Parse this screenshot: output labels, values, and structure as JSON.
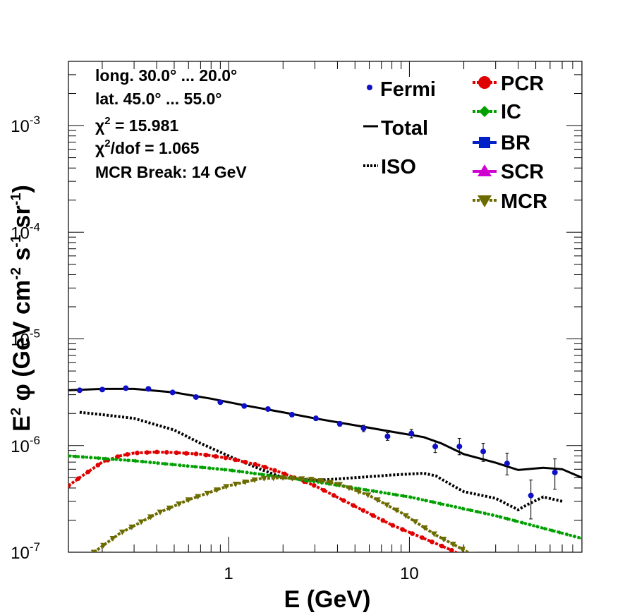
{
  "chart_data": {
    "type": "line",
    "xlabel": "E (GeV)",
    "ylabel": "E² φ (GeV cm⁻² s⁻¹ sr⁻¹)",
    "ylabel_parts": {
      "base": "E",
      "sup1": "2",
      "mid": " φ (GeV cm",
      "sup2": "-2",
      "mid2": " s",
      "sup3": "-1",
      "mid3": " sr",
      "sup4": "-1",
      "end": ")"
    },
    "xscale": "log",
    "yscale": "log",
    "xlim": [
      0.13,
      90
    ],
    "ylim": [
      1e-07,
      0.004
    ],
    "x_tick_labels": [
      {
        "v": 1,
        "label": "1"
      },
      {
        "v": 10,
        "label": "10"
      }
    ],
    "y_tick_labels": [
      {
        "v": 1e-07,
        "base": "10",
        "exp": "-7"
      },
      {
        "v": 1e-06,
        "base": "10",
        "exp": "-6"
      },
      {
        "v": 1e-05,
        "base": "10",
        "exp": "-5"
      },
      {
        "v": 0.0001,
        "base": "10",
        "exp": "-4"
      },
      {
        "v": 0.001,
        "base": "10",
        "exp": "-3"
      }
    ],
    "info": {
      "line1": "long. 30.0° ... 20.0°",
      "line2": "lat. 45.0° ... 55.0°",
      "chi_sym": "χ",
      "chi_sup": "2",
      "chi2_text": " = 15.981",
      "chi2dof_text": "/dof = 1.065",
      "mcr_break": "MCR Break: 14 GeV"
    },
    "legend": {
      "left": [
        {
          "name": "Fermi",
          "color": "#1010c8",
          "style": "dot"
        },
        {
          "name": "Total",
          "color": "#000000",
          "style": "line"
        },
        {
          "name": "ISO",
          "color": "#000000",
          "style": "dotted"
        }
      ],
      "right": [
        {
          "name": "PCR",
          "color": "#e00000",
          "style": "circle"
        },
        {
          "name": "IC",
          "color": "#00a000",
          "style": "diamond"
        },
        {
          "name": "BR",
          "color": "#0020c8",
          "style": "square"
        },
        {
          "name": "SCR",
          "color": "#d000d0",
          "style": "triangle-up"
        },
        {
          "name": "MCR",
          "color": "#6b6b00",
          "style": "triangle-down"
        }
      ]
    },
    "fermi": {
      "color": "#1010c8",
      "points": [
        {
          "x": 0.15,
          "y": 3.3e-06,
          "lo": 3.2e-06,
          "hi": 3.4e-06
        },
        {
          "x": 0.2,
          "y": 3.35e-06,
          "lo": 3.25e-06,
          "hi": 3.45e-06
        },
        {
          "x": 0.27,
          "y": 3.45e-06,
          "lo": 3.35e-06,
          "hi": 3.55e-06
        },
        {
          "x": 0.36,
          "y": 3.4e-06,
          "lo": 3.3e-06,
          "hi": 3.5e-06
        },
        {
          "x": 0.49,
          "y": 3.15e-06,
          "lo": 3.05e-06,
          "hi": 3.25e-06
        },
        {
          "x": 0.66,
          "y": 2.85e-06,
          "lo": 2.75e-06,
          "hi": 2.95e-06
        },
        {
          "x": 0.9,
          "y": 2.55e-06,
          "lo": 2.47e-06,
          "hi": 2.63e-06
        },
        {
          "x": 1.22,
          "y": 2.35e-06,
          "lo": 2.27e-06,
          "hi": 2.43e-06
        },
        {
          "x": 1.65,
          "y": 2.2e-06,
          "lo": 2.12e-06,
          "hi": 2.28e-06
        },
        {
          "x": 2.24,
          "y": 1.95e-06,
          "lo": 1.87e-06,
          "hi": 2.03e-06
        },
        {
          "x": 3.04,
          "y": 1.8e-06,
          "lo": 1.72e-06,
          "hi": 1.88e-06
        },
        {
          "x": 4.12,
          "y": 1.6e-06,
          "lo": 1.52e-06,
          "hi": 1.68e-06
        },
        {
          "x": 5.58,
          "y": 1.45e-06,
          "lo": 1.35e-06,
          "hi": 1.55e-06
        },
        {
          "x": 7.57,
          "y": 1.22e-06,
          "lo": 1.12e-06,
          "hi": 1.32e-06
        },
        {
          "x": 10.26,
          "y": 1.3e-06,
          "lo": 1.18e-06,
          "hi": 1.42e-06
        },
        {
          "x": 13.9,
          "y": 9.8e-07,
          "lo": 8.6e-07,
          "hi": 1.1e-06
        },
        {
          "x": 18.9,
          "y": 9.8e-07,
          "lo": 8.2e-07,
          "hi": 1.17e-06
        },
        {
          "x": 25.6,
          "y": 8.8e-07,
          "lo": 7.1e-07,
          "hi": 1.05e-06
        },
        {
          "x": 34.7,
          "y": 6.8e-07,
          "lo": 5.3e-07,
          "hi": 8.5e-07
        },
        {
          "x": 47.0,
          "y": 3.4e-07,
          "lo": 2.05e-07,
          "hi": 4.75e-07
        },
        {
          "x": 63.8,
          "y": 5.6e-07,
          "lo": 3.9e-07,
          "hi": 7.5e-07
        }
      ]
    },
    "series": [
      {
        "name": "Total",
        "color": "#000000",
        "style": "solid",
        "x": [
          0.13,
          0.2,
          0.3,
          0.5,
          0.8,
          1.2,
          2,
          3,
          5,
          8,
          12,
          15,
          20,
          30,
          40,
          55,
          70,
          90
        ],
        "y": [
          3.3e-06,
          3.4e-06,
          3.4e-06,
          3.15e-06,
          2.75e-06,
          2.4e-06,
          2.05e-06,
          1.8e-06,
          1.55e-06,
          1.35e-06,
          1.2e-06,
          1.05e-06,
          8.3e-07,
          6.9e-07,
          5.9e-07,
          6.2e-07,
          6e-07,
          5e-07
        ]
      },
      {
        "name": "ISO",
        "color": "#000000",
        "style": "dotted",
        "x": [
          0.15,
          0.2,
          0.3,
          0.5,
          0.7,
          1.0,
          1.5,
          2.0,
          3.0,
          5.0,
          8.0,
          12,
          14,
          17,
          20,
          30,
          35,
          40,
          45,
          55,
          70
        ],
        "y": [
          2.05e-06,
          1.95e-06,
          1.8e-06,
          1.4e-06,
          1.05e-06,
          8e-07,
          6e-07,
          5e-07,
          4.7e-07,
          5e-07,
          5.3e-07,
          5.5e-07,
          5.2e-07,
          4.3e-07,
          3.7e-07,
          3.2e-07,
          2.8e-07,
          2.5e-07,
          2.8e-07,
          3.3e-07,
          3e-07
        ]
      },
      {
        "name": "PCR",
        "color": "#e00000",
        "style": "circle",
        "x": [
          0.13,
          0.15,
          0.2,
          0.25,
          0.3,
          0.4,
          0.5,
          0.7,
          1.0,
          1.5,
          2.0,
          3.0,
          5.0,
          8.0,
          12,
          17,
          22
        ],
        "y": [
          4.2e-07,
          5e-07,
          7e-07,
          8e-07,
          8.5e-07,
          8.7e-07,
          8.6e-07,
          8.3e-07,
          7.6e-07,
          6.5e-07,
          5.5e-07,
          4.2e-07,
          2.7e-07,
          1.8e-07,
          1.35e-07,
          1.05e-07,
          8.5e-08
        ]
      },
      {
        "name": "IC",
        "color": "#00a000",
        "style": "diamond",
        "x": [
          0.13,
          0.3,
          1.0,
          3.0,
          10,
          30,
          90
        ],
        "y": [
          8e-07,
          7.2e-07,
          5.9e-07,
          4.6e-07,
          3.3e-07,
          2.2e-07,
          1.35e-07
        ]
      },
      {
        "name": "MCR",
        "color": "#6b6b00",
        "style": "triangle-down",
        "x": [
          0.18,
          0.25,
          0.4,
          0.6,
          1.0,
          1.5,
          2.0,
          3.0,
          4.0,
          6.0,
          9.0,
          14,
          20,
          25
        ],
        "y": [
          1e-07,
          1.5e-07,
          2.3e-07,
          3.1e-07,
          4.2e-07,
          4.9e-07,
          5e-07,
          4.8e-07,
          4.4e-07,
          3.4e-07,
          2.35e-07,
          1.45e-07,
          1.05e-07,
          8.5e-08
        ]
      }
    ]
  }
}
